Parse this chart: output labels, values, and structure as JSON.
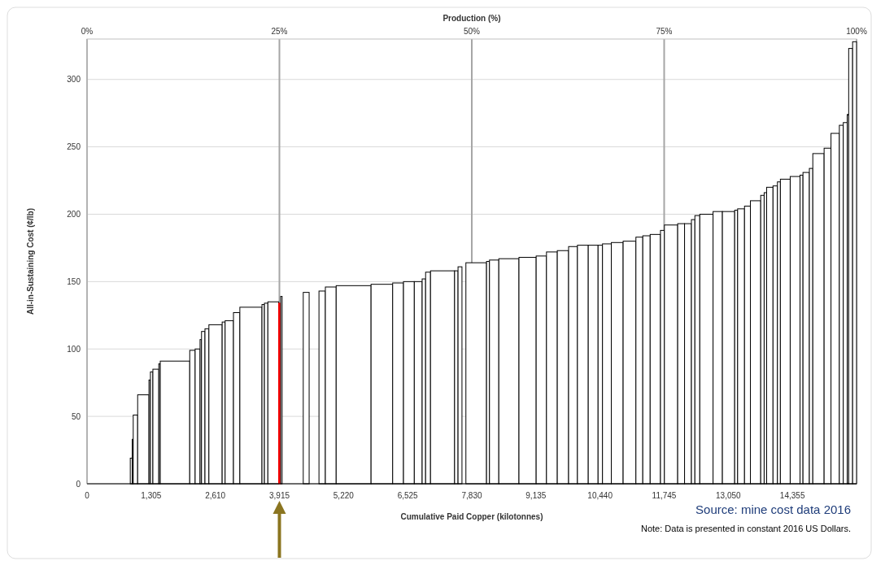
{
  "chart_data": {
    "type": "histogram",
    "x2label": "Production (%)",
    "xlabel": "Cumulative Paid Copper (kilotonnes)",
    "ylabel": "All-in-Sustaining Cost (¢/lb)",
    "bins": [
      880,
      920,
      940,
      1030,
      1260,
      1290,
      1340,
      1460,
      1490,
      2090,
      2200,
      2300,
      2330,
      2400,
      2480,
      2750,
      2810,
      2980,
      3110,
      3560,
      3610,
      3680,
      3900,
      3940,
      3970,
      4400,
      4520,
      4720,
      4850,
      5070,
      5780,
      6220,
      6440,
      6660,
      6820,
      6890,
      6990,
      7480,
      7550,
      7630,
      7710,
      8130,
      8190,
      8380,
      8790,
      9140,
      9350,
      9570,
      9800,
      9980,
      10200,
      10400,
      10490,
      10670,
      10910,
      11170,
      11310,
      11460,
      11670,
      11750,
      12020,
      12160,
      12300,
      12370,
      12470,
      12740,
      12930,
      13180,
      13240,
      13380,
      13500,
      13710,
      13780,
      13830,
      13960,
      14050,
      14110,
      14310,
      14510,
      14570,
      14700,
      14770,
      15000,
      15140,
      15310,
      15390,
      15470,
      15500,
      15580,
      15660
    ],
    "values": [
      19,
      33,
      51,
      66,
      77,
      83,
      85,
      89,
      91,
      99,
      100,
      107,
      113,
      115,
      118,
      120,
      121,
      127,
      131,
      133,
      134,
      135,
      134,
      139,
      null,
      142,
      null,
      143,
      146,
      147,
      148,
      149,
      150,
      150,
      152,
      157,
      158,
      158,
      161,
      null,
      164,
      165,
      166,
      167,
      168,
      169,
      172,
      173,
      176,
      177,
      177,
      177,
      178,
      179,
      180,
      183,
      184,
      185,
      188,
      192,
      193,
      193,
      196,
      199,
      200,
      202,
      202,
      203,
      204,
      206,
      210,
      214,
      216,
      220,
      221,
      224,
      226,
      228,
      229,
      231,
      234,
      245,
      249,
      260,
      266,
      268,
      274,
      323,
      328
    ],
    "colors": [
      "#ffffff",
      "#ffffff",
      "#ffffff",
      "#ffffff",
      "#ffffff",
      "#ffffff",
      "#ffffff",
      "#ffffff",
      "#ffffff",
      "#ffffff",
      "#ffffff",
      "#ffffff",
      "#ffffff",
      "#ffffff",
      "#ffffff",
      "#ffffff",
      "#ffffff",
      "#ffffff",
      "#ffffff",
      "#ffffff",
      "#ffffff",
      "#ffffff",
      "#ff0000",
      "#ffffff",
      null,
      "#ffffff",
      null,
      "#ffffff",
      "#ffffff",
      "#ffffff",
      "#ffffff",
      "#ffffff",
      "#ffffff",
      "#ffffff",
      "#ffffff",
      "#ffffff",
      "#ffffff",
      "#ffffff",
      "#ffffff",
      null,
      "#ffffff",
      "#ffffff",
      "#ffffff",
      "#ffffff",
      "#ffffff",
      "#ffffff",
      "#ffffff",
      "#ffffff",
      "#ffffff",
      "#ffffff",
      "#ffffff",
      "#ffffff",
      "#ffffff",
      "#ffffff",
      "#ffffff",
      "#ffffff",
      "#ffffff",
      "#ffffff",
      "#ffffff",
      "#ffffff",
      "#ffffff",
      "#ffffff",
      "#ffffff",
      "#ffffff",
      "#ffffff",
      "#ffffff",
      "#ffffff",
      "#ffffff",
      "#ffffff",
      "#ffffff",
      "#ffffff",
      "#ffffff",
      "#ffffff",
      "#ffffff",
      "#ffffff",
      "#ffffff",
      "#ffffff",
      "#ffffff",
      "#ffffff",
      "#ffffff",
      "#ffffff",
      "#ffffff",
      "#ffffff",
      "#ffffff",
      "#ffffff",
      "#ffffff",
      "#ffffff",
      "#ffffff",
      "#ffffff"
    ],
    "xlim": [
      0,
      15660
    ],
    "xticks": [
      0,
      {
        "value": 1305,
        "label": "1,305"
      },
      {
        "value": 2610,
        "label": "2,610"
      },
      {
        "value": 3915,
        "label": "3,915"
      },
      {
        "value": 5220,
        "label": "5,220"
      },
      {
        "value": 6525,
        "label": "6,525"
      },
      {
        "value": 7830,
        "label": "7,830"
      },
      {
        "value": 9135,
        "label": "9,135"
      },
      {
        "value": 10440,
        "label": "10,440"
      },
      {
        "value": 11745,
        "label": "11,745"
      },
      {
        "value": 13050,
        "label": "13,050"
      },
      {
        "value": 14355,
        "label": "14,355"
      }
    ],
    "x2lim": [
      0,
      100
    ],
    "x2ticks": [
      {
        "value": 0,
        "label": "0%"
      },
      {
        "value": 25,
        "label": "25%"
      },
      {
        "value": 50,
        "label": "50%"
      },
      {
        "value": 75,
        "label": "75%"
      },
      {
        "value": 100,
        "label": "100%"
      }
    ],
    "ylim": [
      0,
      330
    ],
    "yticks": [
      0,
      50,
      100,
      150,
      200,
      250,
      300
    ],
    "grid": true,
    "annotations": [
      "Source: mine cost data 2016",
      "Note: Data is presented in constant 2016 US Dollars."
    ]
  }
}
